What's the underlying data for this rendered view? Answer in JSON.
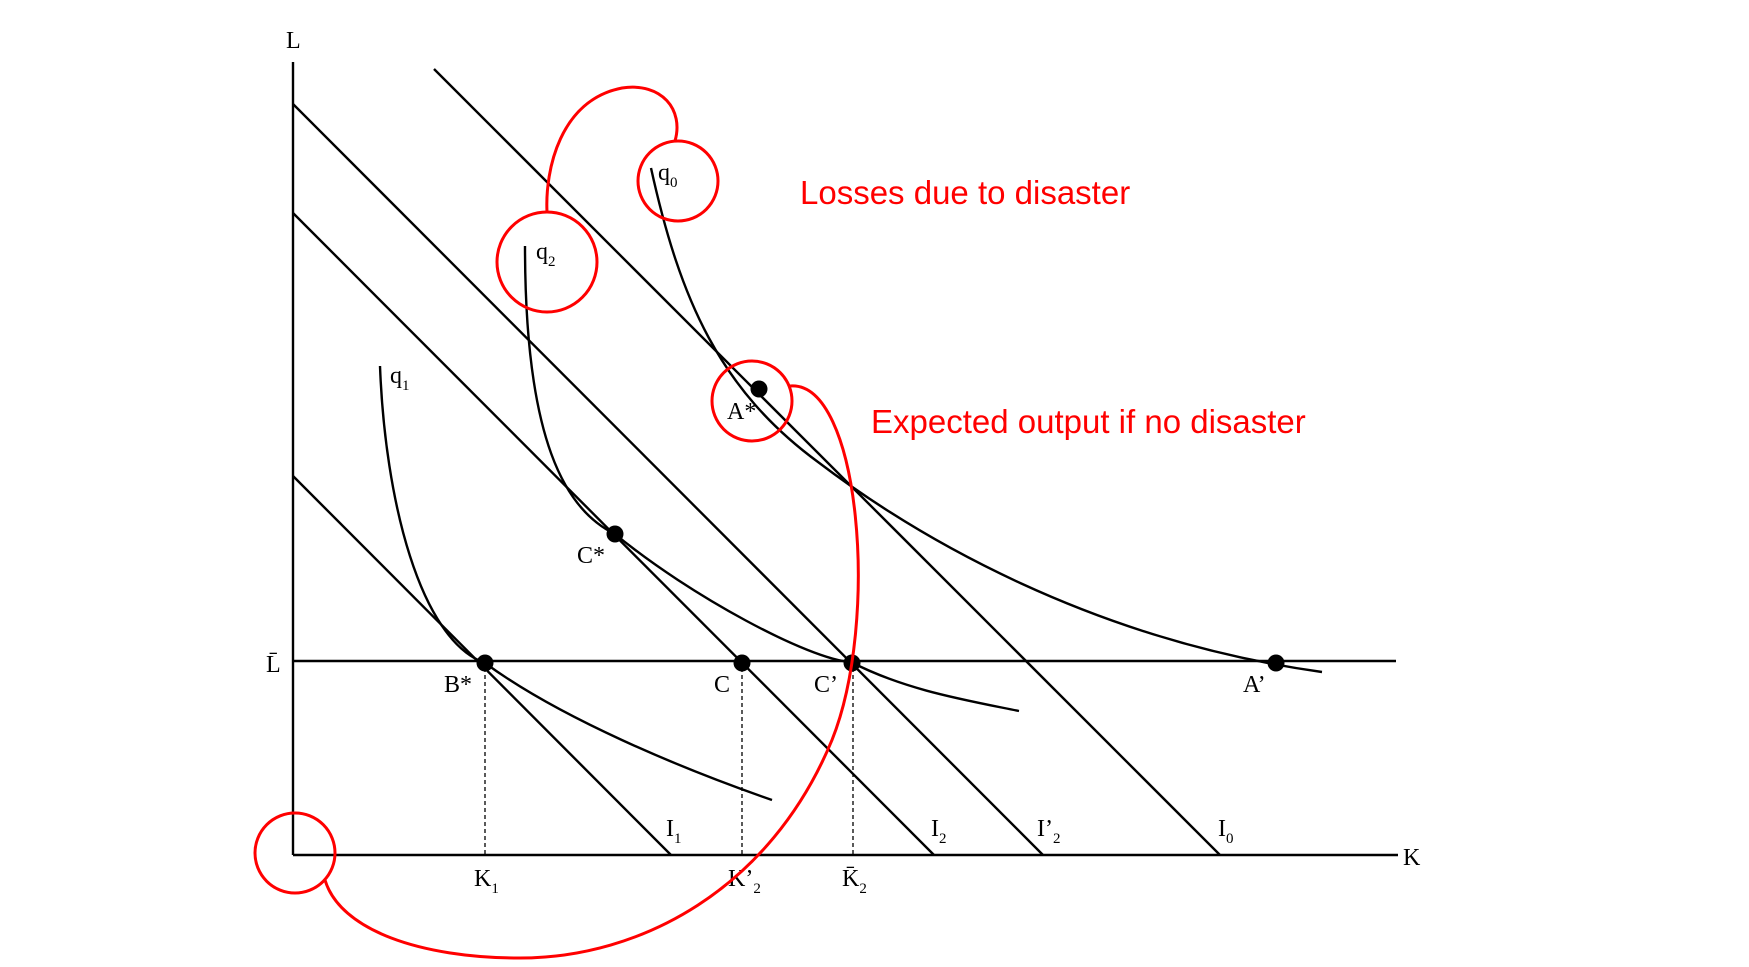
{
  "axes": {
    "y_label": "L",
    "x_label": "K",
    "lbar_label": "L̄"
  },
  "curves": {
    "q0": {
      "base": "q",
      "sub": "0"
    },
    "q1": {
      "base": "q",
      "sub": "1"
    },
    "q2": {
      "base": "q",
      "sub": "2"
    }
  },
  "lines": {
    "I1": {
      "base": "I",
      "sub": "1"
    },
    "I2": {
      "base": "I",
      "sub": "2"
    },
    "I2p": {
      "base": "I’",
      "sub": "2"
    },
    "I0": {
      "base": "I",
      "sub": "0"
    }
  },
  "points": {
    "A_star": "A*",
    "A_prime": "A’",
    "B_star": "B*",
    "C_star": "C*",
    "C": "C",
    "C_prime": "C’"
  },
  "ticks": {
    "K1": {
      "base": "K",
      "sub": "1"
    },
    "K2p": {
      "base": "K’",
      "sub": "2"
    },
    "K2bar": {
      "base": "K̄",
      "sub": "2"
    }
  },
  "annotations": {
    "losses": "Losses due to disaster",
    "expected": "Expected output if no disaster",
    "color": "#ff0000"
  }
}
